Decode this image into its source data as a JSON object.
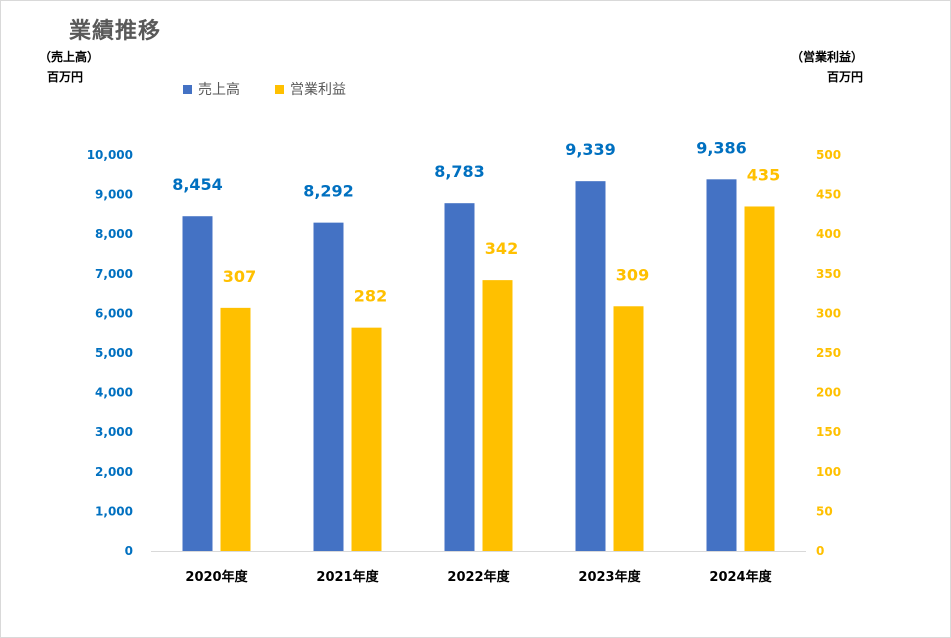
{
  "title": "業績推移",
  "left_unit": {
    "label": "（売上高）",
    "unit": "百万円"
  },
  "right_unit": {
    "label": "（営業利益）",
    "unit": "百万円"
  },
  "chart_data": {
    "type": "bar",
    "categories": [
      "2020年度",
      "2021年度",
      "2022年度",
      "2023年度",
      "2024年度"
    ],
    "series": [
      {
        "name": "売上高",
        "axis": "left",
        "color": "#4472C4",
        "label_color": "#0070C0",
        "values": [
          8454,
          8292,
          8783,
          9339,
          9386
        ],
        "labels": [
          "8,454",
          "8,292",
          "8,783",
          "9,339",
          "9,386"
        ]
      },
      {
        "name": "営業利益",
        "axis": "right",
        "color": "#FFC000",
        "label_color": "#FFC000",
        "values": [
          307,
          282,
          342,
          309,
          435
        ],
        "labels": [
          "307",
          "282",
          "342",
          "309",
          "435"
        ]
      }
    ],
    "y_left": {
      "ylim": [
        0,
        10000
      ],
      "ticks": [
        "0",
        "1,000",
        "2,000",
        "3,000",
        "4,000",
        "5,000",
        "6,000",
        "7,000",
        "8,000",
        "9,000",
        "10,000"
      ],
      "tick_color": "#0070C0"
    },
    "y_right": {
      "ylim": [
        0,
        500
      ],
      "ticks": [
        "0",
        "50",
        "100",
        "150",
        "200",
        "250",
        "300",
        "350",
        "400",
        "450",
        "500"
      ],
      "tick_color": "#FFC000"
    },
    "grid": false,
    "legend_position": "top-left"
  }
}
